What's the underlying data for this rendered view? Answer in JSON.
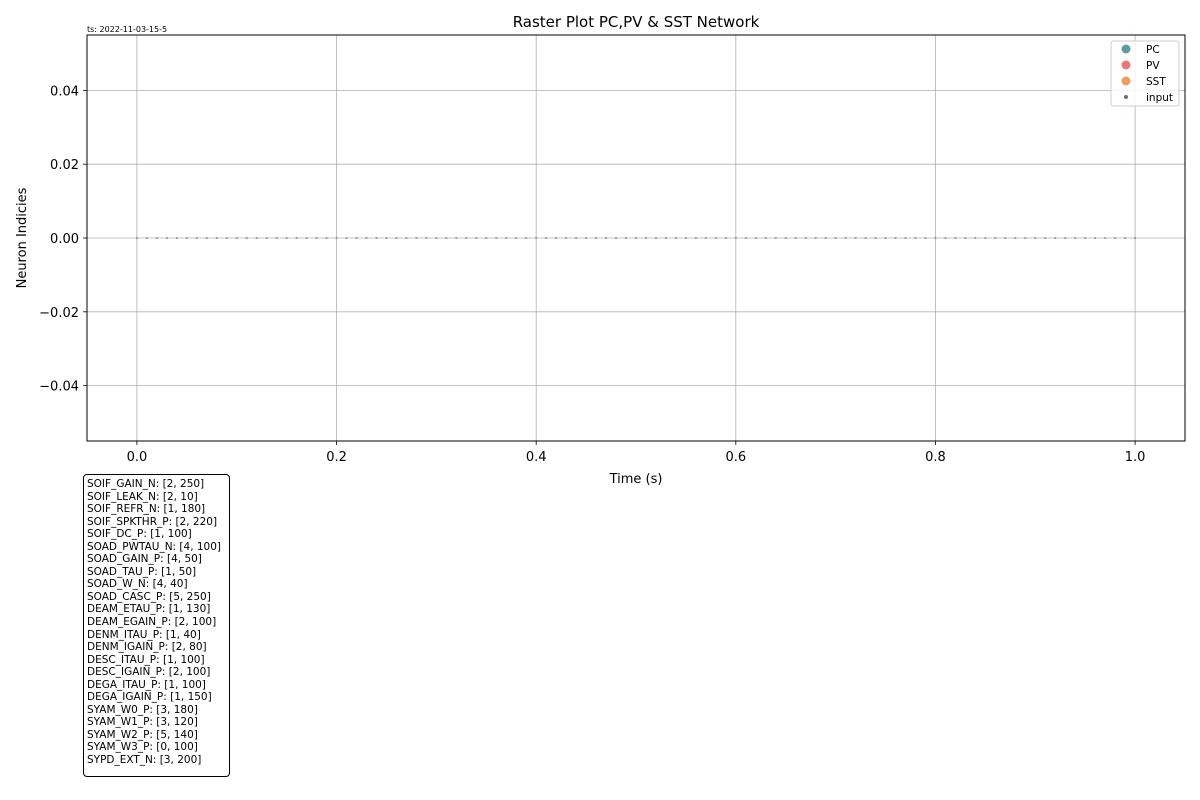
{
  "timestamp": "ts: 2022-11-03-15-5",
  "chart_data": {
    "type": "scatter",
    "title": "Raster Plot PC,PV & SST Network",
    "xlabel": "Time (s)",
    "ylabel": "Neuron Indicies",
    "xlim": [
      -0.05,
      1.05
    ],
    "ylim": [
      -0.055,
      0.055
    ],
    "xticks": [
      0.0,
      0.2,
      0.4,
      0.6,
      0.8,
      1.0
    ],
    "xtick_labels": [
      "0.0",
      "0.2",
      "0.4",
      "0.6",
      "0.8",
      "1.0"
    ],
    "yticks": [
      0.04,
      0.02,
      0.0,
      -0.02,
      -0.04
    ],
    "ytick_labels": [
      "0.04",
      "0.02",
      "0.00",
      "−0.02",
      "−0.04"
    ],
    "grid": true,
    "legend_position": "top-right",
    "series": [
      {
        "name": "PC",
        "color": "#5a9ea0",
        "x": [],
        "y": []
      },
      {
        "name": "PV",
        "color": "#e8777b",
        "x": [],
        "y": []
      },
      {
        "name": "SST",
        "color": "#eea05a",
        "x": [],
        "y": []
      },
      {
        "name": "input",
        "color": "#5f6f94",
        "x_start": 0.0,
        "x_end": 1.0,
        "x_step": 0.01,
        "y_value": 0.0
      }
    ]
  },
  "params": [
    "SOIF_GAIN_N: [2, 250]",
    "SOIF_LEAK_N: [2, 10]",
    "SOIF_REFR_N: [1, 180]",
    "SOIF_SPKTHR_P: [2, 220]",
    "SOIF_DC_P: [1, 100]",
    "SOAD_PWTAU_N: [4, 100]",
    "SOAD_GAIN_P: [4, 50]",
    "SOAD_TAU_P: [1, 50]",
    "SOAD_W_N: [4, 40]",
    "SOAD_CASC_P: [5, 250]",
    "DEAM_ETAU_P: [1, 130]",
    "DEAM_EGAIN_P: [2, 100]",
    "DENM_ITAU_P: [1, 40]",
    "DENM_IGAIN_P: [2, 80]",
    "DESC_ITAU_P: [1, 100]",
    "DESC_IGAIN_P: [2, 100]",
    "DEGA_ITAU_P: [1, 100]",
    "DEGA_IGAIN_P: [1, 150]",
    "SYAM_W0_P: [3, 180]",
    "SYAM_W1_P: [3, 120]",
    "SYAM_W2_P: [5, 140]",
    "SYAM_W3_P: [0, 100]",
    "SYPD_EXT_N: [3, 200]"
  ]
}
